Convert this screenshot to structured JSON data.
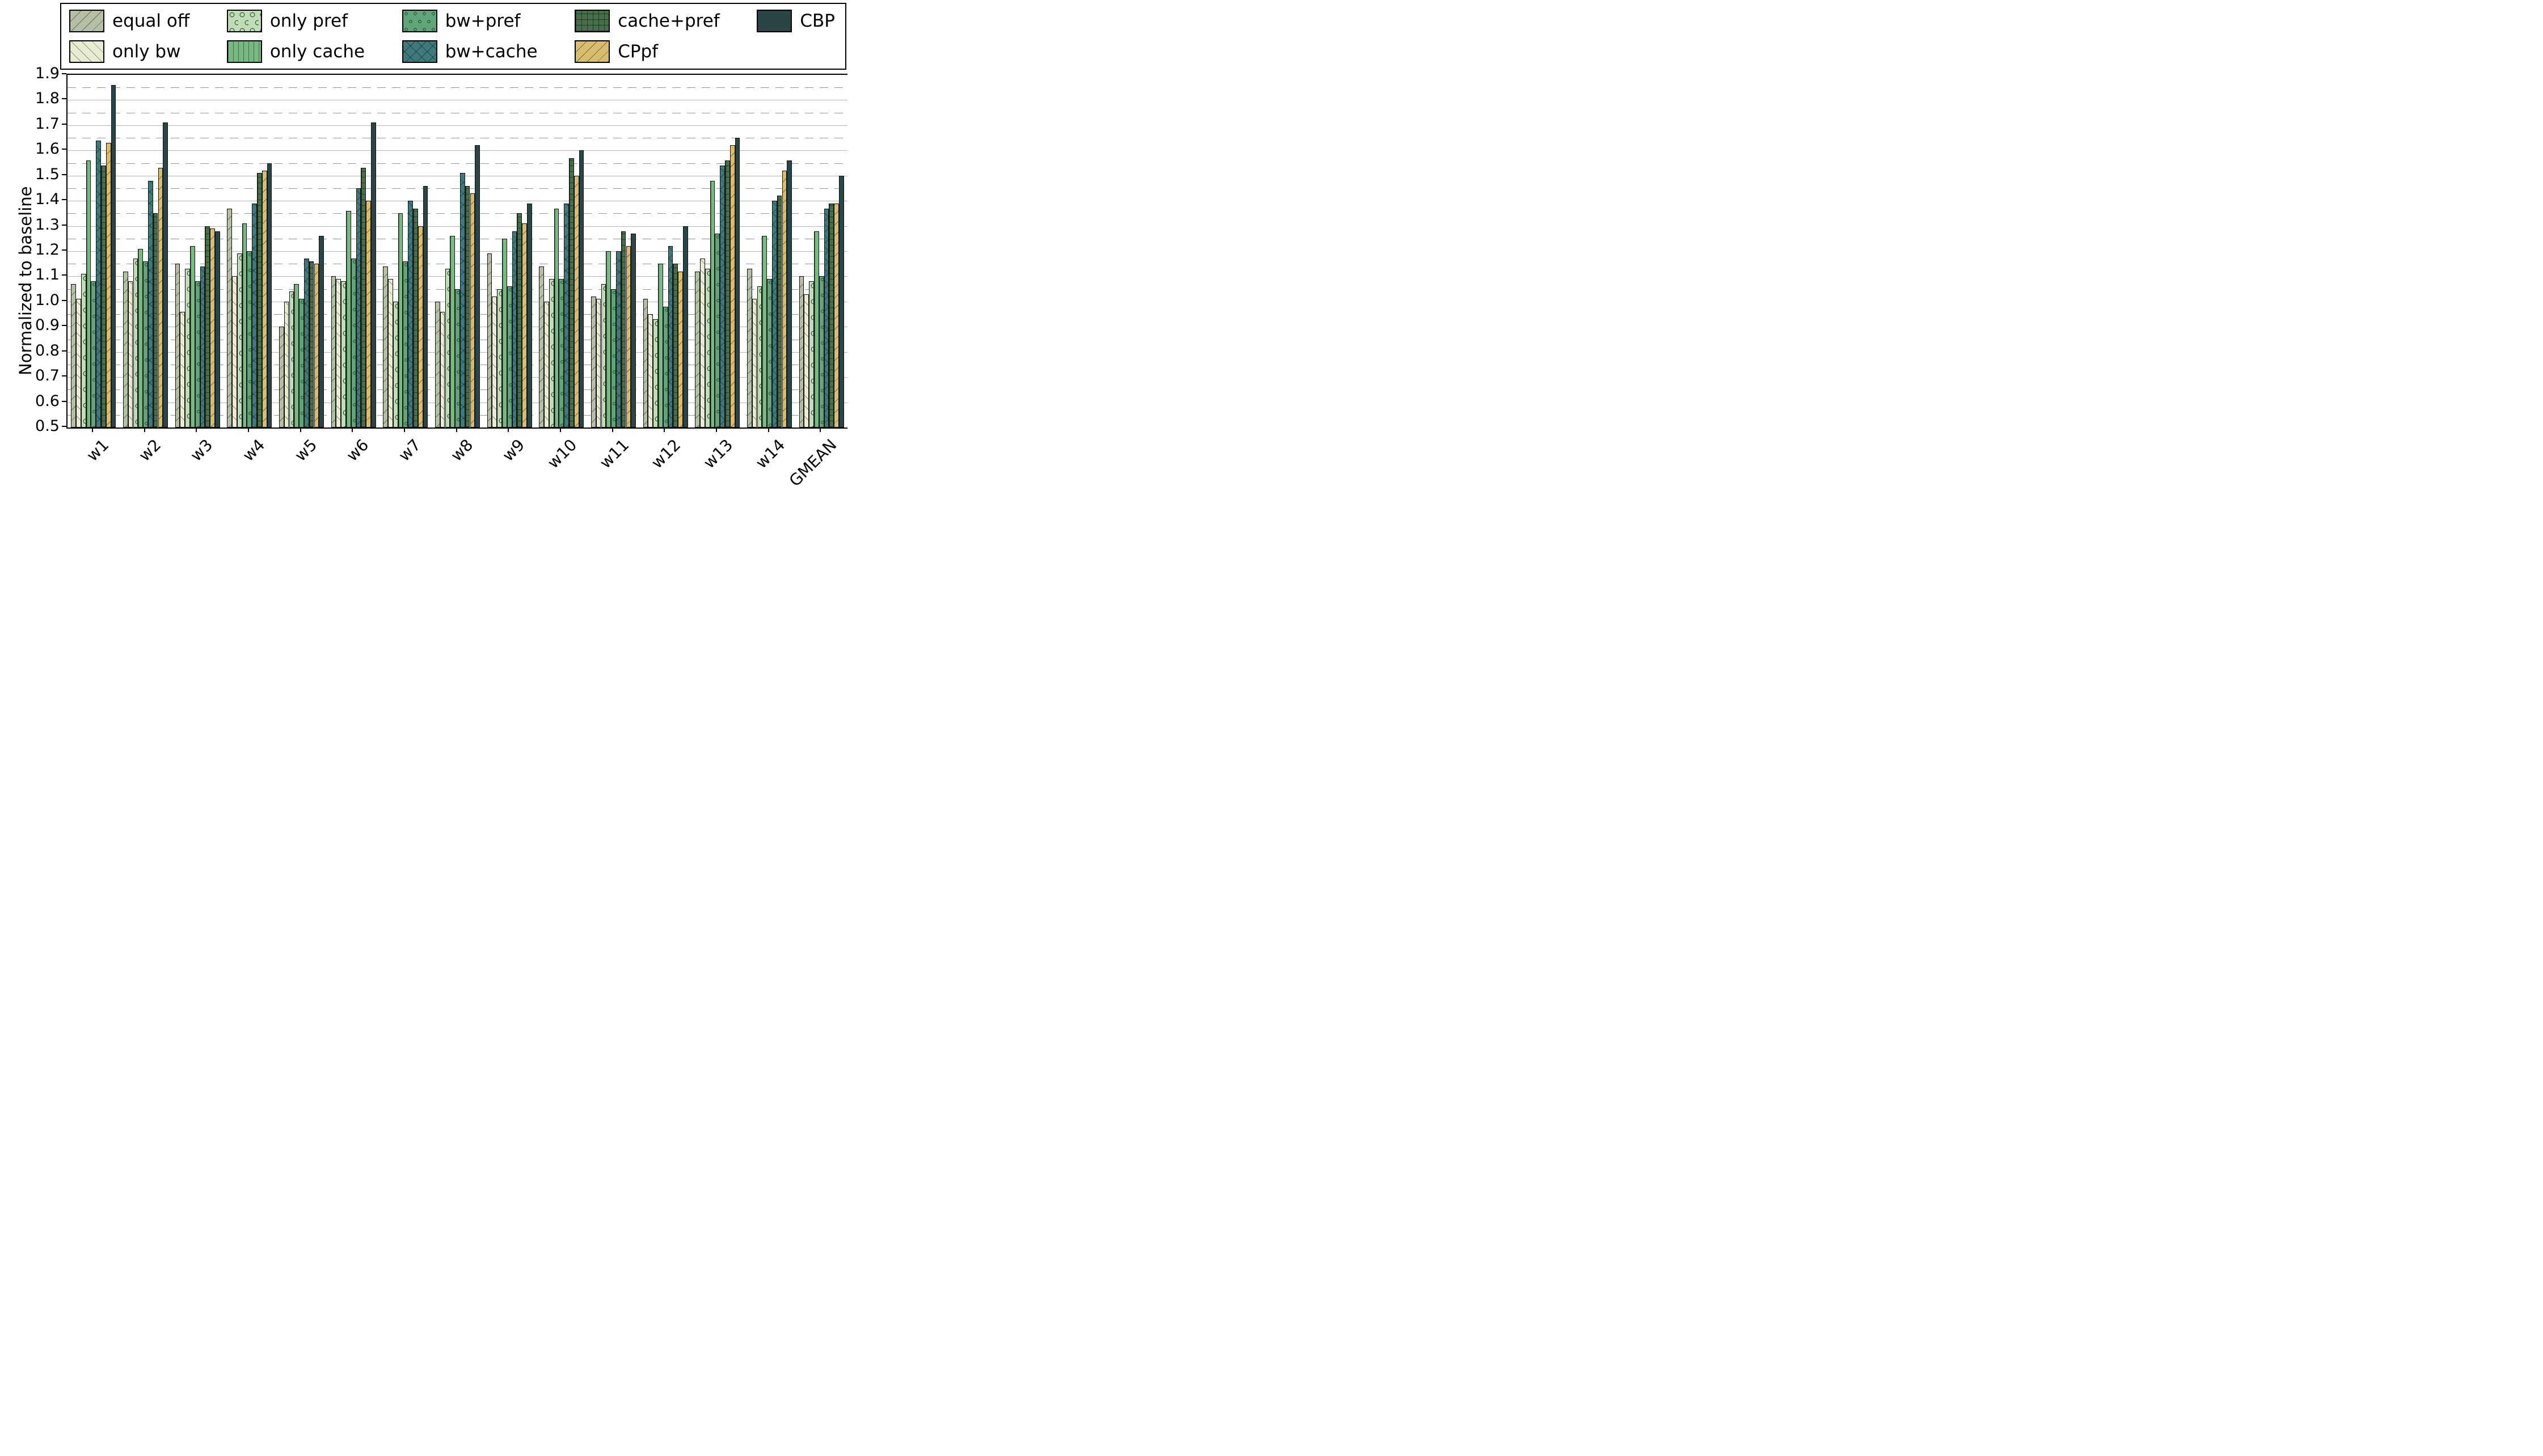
{
  "figure": {
    "background": "#ffffff",
    "frame_color": "#000000"
  },
  "chart_data": {
    "type": "bar",
    "title": "",
    "xlabel": "",
    "ylabel": "Normalized to baseline",
    "ylim": [
      0.5,
      1.9
    ],
    "ytick_step": 0.1,
    "minor_grid_step": 0.05,
    "grid": "horizontal; solid gray major lines every 0.1, dashed gray minor lines every 0.05",
    "legend_position": "top, boxed, 5 columns x 2 rows",
    "bar_edge_color": "#101010",
    "categories": [
      "w1",
      "w2",
      "w3",
      "w4",
      "w5",
      "w6",
      "w7",
      "w8",
      "w9",
      "w10",
      "w11",
      "w12",
      "w13",
      "w14",
      "GMEAN"
    ],
    "series": [
      {
        "name": "equal off",
        "color": "#b4bfa6",
        "pattern": "diag_fwd",
        "values": [
          1.07,
          1.12,
          1.15,
          1.37,
          0.9,
          1.1,
          1.14,
          1.0,
          1.19,
          1.14,
          1.02,
          1.01,
          1.12,
          1.13,
          1.1
        ]
      },
      {
        "name": "only bw",
        "color": "#e9ecd2",
        "pattern": "diag_back",
        "values": [
          1.01,
          1.08,
          0.96,
          1.1,
          1.0,
          1.09,
          1.09,
          0.96,
          1.02,
          1.0,
          1.01,
          0.95,
          1.17,
          1.01,
          1.03
        ]
      },
      {
        "name": "only pref",
        "color": "#c0ddb7",
        "pattern": "circles_lg",
        "values": [
          1.11,
          1.17,
          1.13,
          1.19,
          1.04,
          1.08,
          1.0,
          1.13,
          1.05,
          1.09,
          1.07,
          0.93,
          1.13,
          1.06,
          1.08
        ]
      },
      {
        "name": "only cache",
        "color": "#7ab883",
        "pattern": "vlines",
        "values": [
          1.56,
          1.21,
          1.22,
          1.31,
          1.07,
          1.36,
          1.35,
          1.26,
          1.25,
          1.37,
          1.2,
          1.15,
          1.48,
          1.26,
          1.28
        ]
      },
      {
        "name": "bw+pref",
        "color": "#5fa579",
        "pattern": "circles_sm",
        "values": [
          1.08,
          1.16,
          1.08,
          1.2,
          1.01,
          1.17,
          1.16,
          1.05,
          1.06,
          1.09,
          1.05,
          0.98,
          1.27,
          1.09,
          1.1
        ]
      },
      {
        "name": "bw+cache",
        "color": "#41797b",
        "pattern": "crosshatch",
        "values": [
          1.64,
          1.48,
          1.14,
          1.39,
          1.17,
          1.45,
          1.4,
          1.51,
          1.28,
          1.39,
          1.2,
          1.22,
          1.54,
          1.4,
          1.37
        ]
      },
      {
        "name": "cache+pref",
        "color": "#486e4c",
        "pattern": "grid",
        "values": [
          1.54,
          1.35,
          1.3,
          1.51,
          1.16,
          1.53,
          1.37,
          1.46,
          1.35,
          1.57,
          1.28,
          1.15,
          1.56,
          1.42,
          1.39
        ]
      },
      {
        "name": "CPpf",
        "color": "#d9bd6e",
        "pattern": "diag_fwd",
        "values": [
          1.63,
          1.53,
          1.29,
          1.52,
          1.15,
          1.4,
          1.3,
          1.43,
          1.31,
          1.5,
          1.22,
          1.12,
          1.62,
          1.52,
          1.39
        ]
      },
      {
        "name": "CBP",
        "color": "#2b4445",
        "pattern": "solid",
        "values": [
          1.86,
          1.71,
          1.28,
          1.55,
          1.26,
          1.71,
          1.46,
          1.62,
          1.39,
          1.6,
          1.27,
          1.3,
          1.65,
          1.56,
          1.5
        ]
      }
    ],
    "legend_columns": [
      [
        "equal off",
        "only bw"
      ],
      [
        "only pref",
        "only cache"
      ],
      [
        "bw+pref",
        "bw+cache"
      ],
      [
        "cache+pref",
        "CPpf"
      ],
      [
        "CBP"
      ]
    ]
  }
}
